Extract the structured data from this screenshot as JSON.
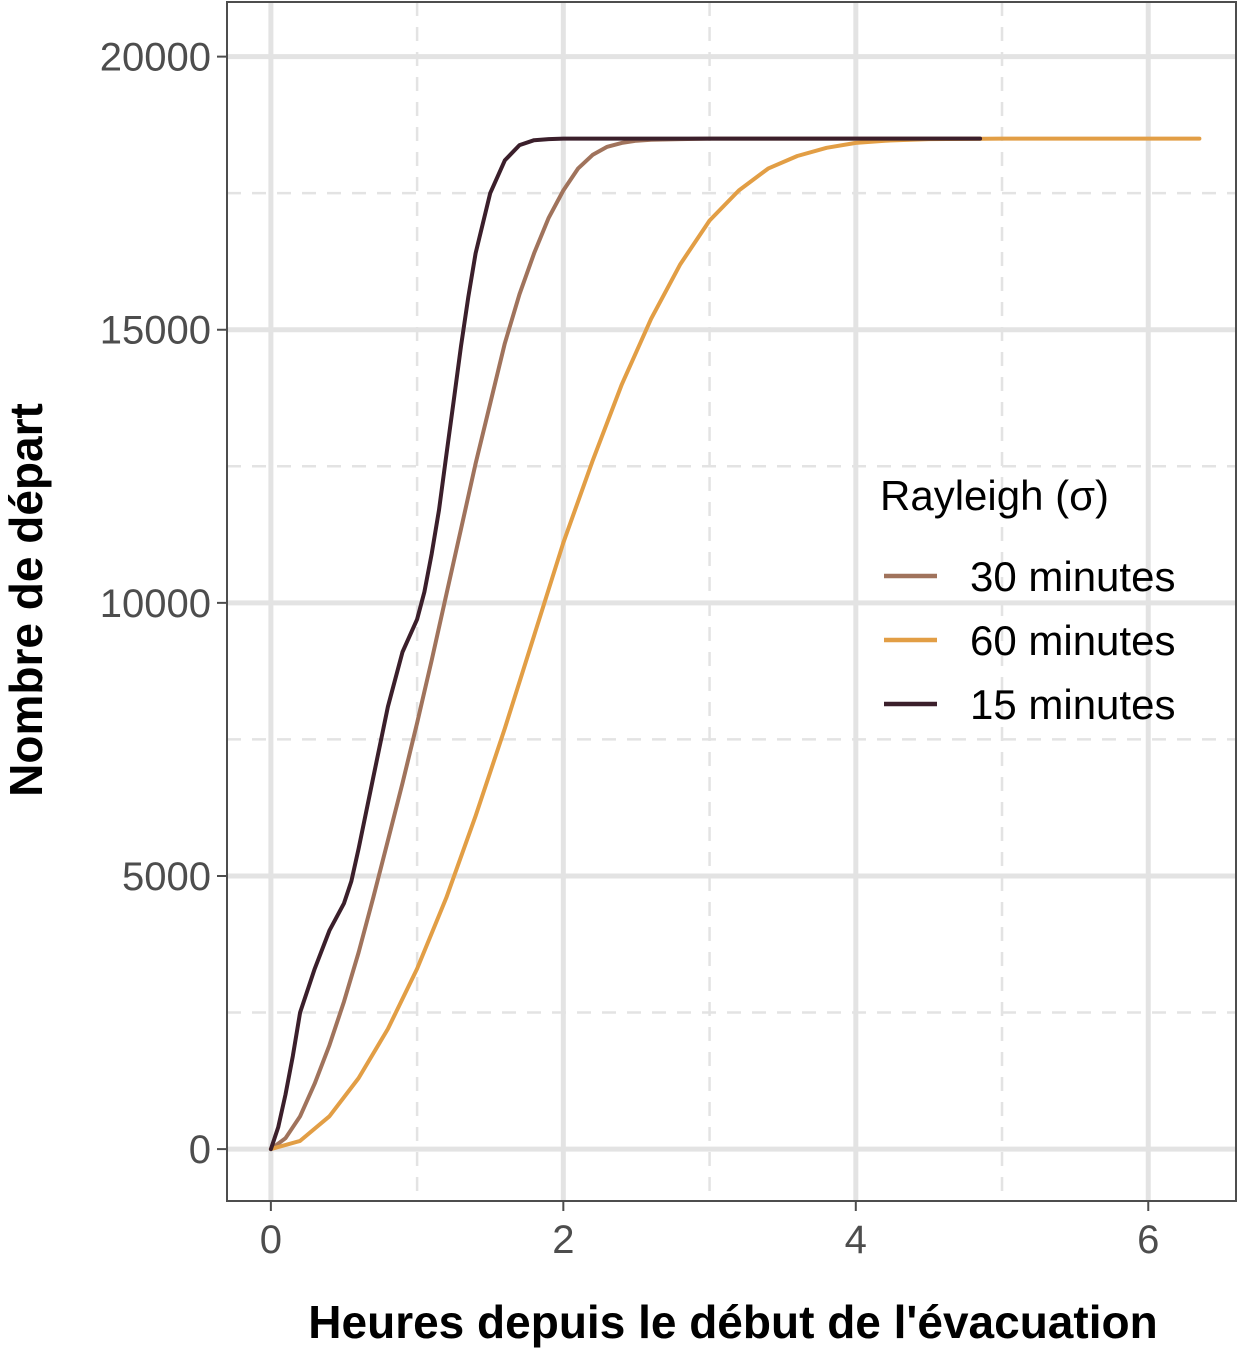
{
  "chart_data": {
    "type": "line",
    "xlabel": "Heures depuis le début de l'évacuation",
    "ylabel": "Nombre de départ",
    "xlim": [
      -0.3,
      6.6
    ],
    "ylim": [
      -950,
      21000
    ],
    "x_ticks": [
      0,
      2,
      4,
      6
    ],
    "x_tick_labels": [
      "0",
      "2",
      "4",
      "6"
    ],
    "y_ticks": [
      0,
      5000,
      10000,
      15000,
      20000
    ],
    "y_tick_labels": [
      "0",
      "5000",
      "10000",
      "15000",
      "20000"
    ],
    "x_minor_ticks": [
      1,
      3,
      5
    ],
    "y_minor_ticks": [
      2500,
      7500,
      12500,
      17500
    ],
    "grid": true,
    "legend": {
      "title": "Rayleigh (σ)",
      "placement": "right",
      "entries": [
        "30 minutes",
        "60 minutes",
        "15 minutes"
      ]
    },
    "series": [
      {
        "name": "30 minutes",
        "color": "#a0735c",
        "x": [
          0,
          0.1,
          0.2,
          0.3,
          0.4,
          0.5,
          0.6,
          0.7,
          0.8,
          0.9,
          1.0,
          1.1,
          1.2,
          1.3,
          1.4,
          1.5,
          1.6,
          1.7,
          1.8,
          1.9,
          2.0,
          2.1,
          2.2,
          2.3,
          2.4,
          2.5,
          2.6,
          2.8,
          3.0,
          3.5,
          4.0,
          4.5,
          4.85
        ],
        "y": [
          0,
          200,
          600,
          1200,
          1900,
          2700,
          3600,
          4600,
          5650,
          6700,
          7800,
          8950,
          10150,
          11350,
          12550,
          13650,
          14750,
          15650,
          16400,
          17050,
          17550,
          17950,
          18200,
          18350,
          18420,
          18460,
          18480,
          18490,
          18500,
          18500,
          18500,
          18500,
          18500
        ]
      },
      {
        "name": "60 minutes",
        "color": "#e29e45",
        "x": [
          0,
          0.2,
          0.4,
          0.6,
          0.8,
          1.0,
          1.2,
          1.4,
          1.6,
          1.8,
          2.0,
          2.2,
          2.4,
          2.6,
          2.8,
          3.0,
          3.2,
          3.4,
          3.6,
          3.8,
          4.0,
          4.2,
          4.5,
          5.0,
          5.5,
          6.0,
          6.35
        ],
        "y": [
          0,
          150,
          600,
          1300,
          2200,
          3300,
          4600,
          6100,
          7700,
          9400,
          11100,
          12600,
          14000,
          15200,
          16200,
          17000,
          17550,
          17950,
          18180,
          18330,
          18420,
          18460,
          18490,
          18500,
          18500,
          18500,
          18500
        ]
      },
      {
        "name": "15 minutes",
        "color": "#3b1f2b",
        "x": [
          0,
          0.05,
          0.1,
          0.15,
          0.2,
          0.3,
          0.4,
          0.5,
          0.55,
          0.6,
          0.7,
          0.8,
          0.9,
          1.0,
          1.05,
          1.1,
          1.15,
          1.2,
          1.25,
          1.3,
          1.35,
          1.4,
          1.5,
          1.6,
          1.7,
          1.8,
          1.9,
          2.0,
          2.5,
          3.0,
          4.0,
          4.85
        ],
        "y": [
          0,
          400,
          1000,
          1700,
          2500,
          3300,
          4000,
          4500,
          4900,
          5500,
          6800,
          8100,
          9100,
          9700,
          10200,
          10900,
          11700,
          12700,
          13700,
          14700,
          15600,
          16400,
          17500,
          18100,
          18380,
          18470,
          18490,
          18500,
          18500,
          18500,
          18500,
          18500
        ]
      }
    ]
  }
}
